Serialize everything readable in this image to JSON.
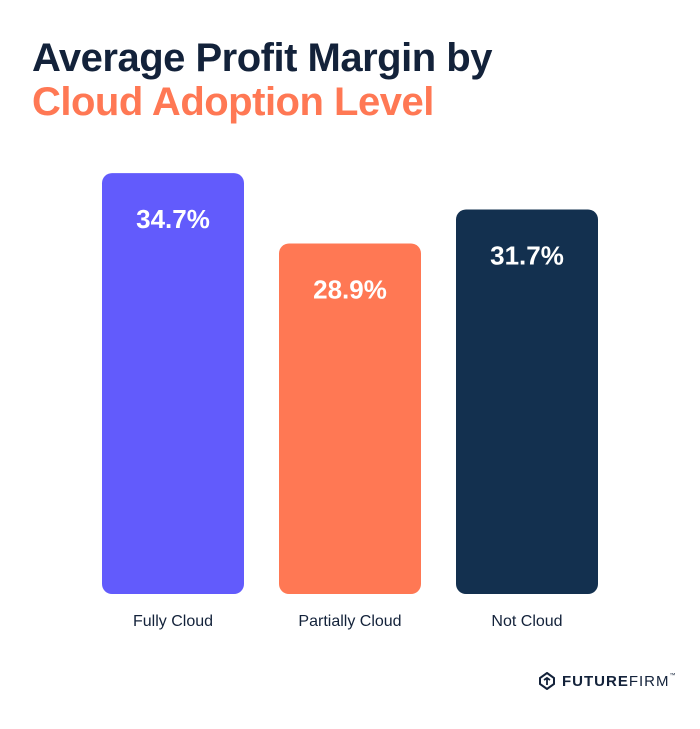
{
  "title": {
    "line1": "Average Profit Margin by",
    "line2": "Cloud Adoption Level"
  },
  "colors": {
    "title_dark": "#13223a",
    "title_accent": "#ff7854"
  },
  "chart_data": {
    "type": "bar",
    "categories": [
      "Fully Cloud",
      "Partially Cloud",
      "Not Cloud"
    ],
    "values": [
      34.7,
      28.9,
      31.7
    ],
    "data_labels": [
      "34.7%",
      "28.9%",
      "31.7%"
    ],
    "colors": [
      "#625bfc",
      "#ff7854",
      "#13304f"
    ],
    "title": "Average Profit Margin by Cloud Adoption Level",
    "xlabel": "",
    "ylabel": "",
    "grid": false
  },
  "logo": {
    "bold": "FUTURE",
    "regular": "FIRM",
    "tm": "™"
  }
}
